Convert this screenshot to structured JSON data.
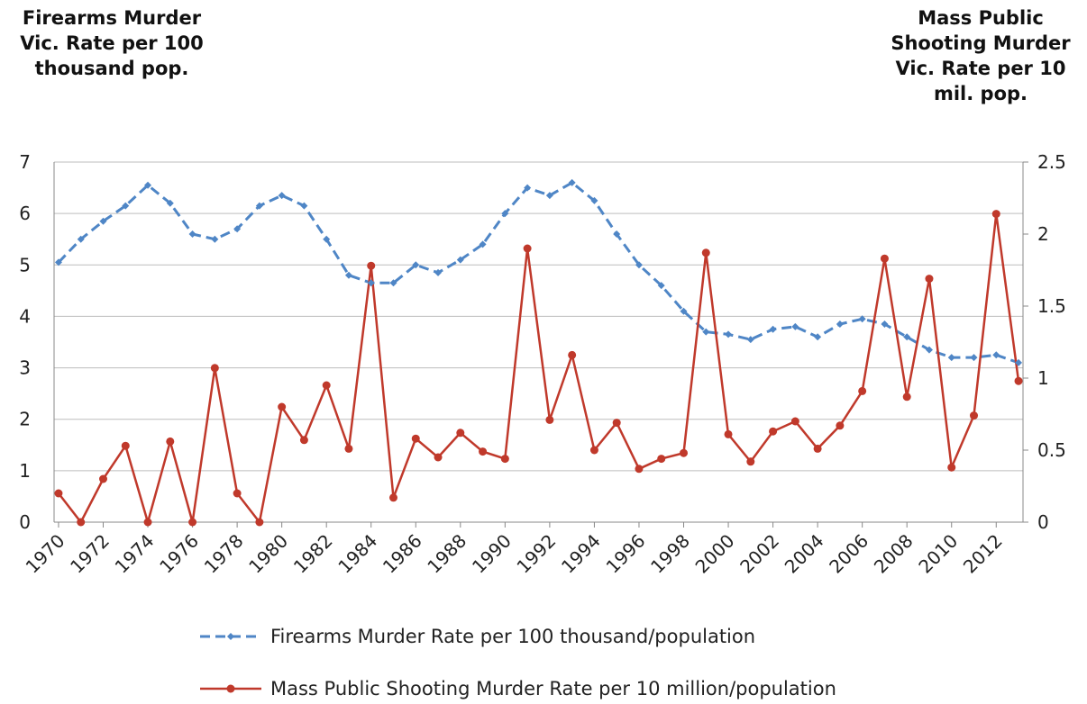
{
  "chart_data": {
    "type": "line",
    "x": [
      1970,
      1971,
      1972,
      1973,
      1974,
      1975,
      1976,
      1977,
      1978,
      1979,
      1980,
      1981,
      1982,
      1983,
      1984,
      1985,
      1986,
      1987,
      1988,
      1989,
      1990,
      1991,
      1992,
      1993,
      1994,
      1995,
      1996,
      1997,
      1998,
      1999,
      2000,
      2001,
      2002,
      2003,
      2004,
      2005,
      2006,
      2007,
      2008,
      2009,
      2010,
      2011,
      2012,
      2013
    ],
    "x_tick_labels": [
      "1970",
      "1972",
      "1974",
      "1976",
      "1978",
      "1980",
      "1982",
      "1984",
      "1986",
      "1988",
      "1990",
      "1992",
      "1994",
      "1996",
      "1998",
      "2000",
      "2002",
      "2004",
      "2006",
      "2008",
      "2010",
      "2012"
    ],
    "y_left_label": "Firearms Murder\nVic. Rate per 100\nthousand pop.",
    "y_right_label": "Mass Public\nShooting Murder\nVic. Rate per 10\nmil. pop.",
    "y_left_lim": [
      0,
      7
    ],
    "y_left_ticks": [
      "0",
      "1",
      "2",
      "3",
      "4",
      "5",
      "6",
      "7"
    ],
    "y_right_lim": [
      0,
      2.5
    ],
    "y_right_ticks": [
      "0",
      "0.5",
      "1",
      "1.5",
      "2",
      "2.5"
    ],
    "grid": "horizontal",
    "legend_position": "bottom",
    "series": [
      {
        "name": "Firearms Murder Rate per 100 thousand/population",
        "axis": "left",
        "color": "#4f86c6",
        "style": "dashed",
        "marker": "diamond",
        "values": [
          5.05,
          5.5,
          5.85,
          6.15,
          6.55,
          6.2,
          5.6,
          5.5,
          5.7,
          6.15,
          6.35,
          6.15,
          5.5,
          4.8,
          4.65,
          4.65,
          5.0,
          4.85,
          5.1,
          5.4,
          6.0,
          6.5,
          6.35,
          6.6,
          6.25,
          5.6,
          5.0,
          4.6,
          4.1,
          3.7,
          3.65,
          3.55,
          3.75,
          3.8,
          3.6,
          3.85,
          3.95,
          3.85,
          3.6,
          3.35,
          3.2,
          3.2,
          3.25,
          3.1
        ]
      },
      {
        "name": "Mass Public Shooting Murder Rate per 10 million/population",
        "axis": "right",
        "color": "#c0392b",
        "style": "solid",
        "marker": "circle",
        "values": [
          0.2,
          0.0,
          0.3,
          0.53,
          0.0,
          0.56,
          0.0,
          1.07,
          0.2,
          0.0,
          0.8,
          0.57,
          0.95,
          0.51,
          1.78,
          0.17,
          0.58,
          0.45,
          0.62,
          0.49,
          0.44,
          1.9,
          0.71,
          1.16,
          0.5,
          0.69,
          0.37,
          0.44,
          0.48,
          1.87,
          0.61,
          0.42,
          0.63,
          0.7,
          0.51,
          0.67,
          0.91,
          1.83,
          0.87,
          1.69,
          0.38,
          0.74,
          2.14,
          0.98
        ]
      }
    ]
  }
}
